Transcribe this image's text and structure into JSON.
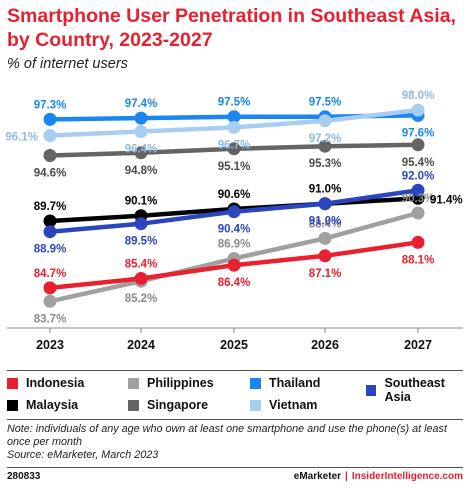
{
  "header": {
    "title_line1": "Smartphone User Penetration in Southeast Asia,",
    "title_line2": "by Country, 2023-2027",
    "subtitle": "% of internet users"
  },
  "chart_data": {
    "type": "line",
    "title": "Smartphone User Penetration in Southeast Asia, by Country, 2023-2027",
    "subtitle": "% of internet users",
    "x": [
      "2023",
      "2024",
      "2025",
      "2026",
      "2027"
    ],
    "ylim": [
      82,
      99.5
    ],
    "grid": false,
    "legend_position": "bottom",
    "series": [
      {
        "name": "Thailand",
        "color": "#1a86f0",
        "values": [
          97.3,
          97.4,
          97.5,
          97.5,
          97.6
        ]
      },
      {
        "name": "Vietnam",
        "color": "#a7cdf0",
        "values": [
          96.1,
          96.4,
          96.7,
          97.2,
          98.0
        ]
      },
      {
        "name": "Singapore",
        "color": "#646464",
        "values": [
          94.6,
          94.8,
          95.1,
          95.3,
          95.4
        ]
      },
      {
        "name": "Malaysia",
        "color": "#000000",
        "values": [
          89.7,
          90.1,
          90.6,
          91.0,
          91.4
        ]
      },
      {
        "name": "Southeast Asia",
        "color": "#2a45be",
        "values": [
          88.9,
          89.5,
          90.4,
          91.0,
          92.0
        ]
      },
      {
        "name": "Philippines",
        "color": "#a0a0a0",
        "values": [
          83.7,
          85.2,
          86.9,
          88.4,
          90.3
        ]
      },
      {
        "name": "Indonesia",
        "color": "#e8202f",
        "values": [
          84.7,
          85.4,
          86.4,
          87.1,
          88.1
        ]
      }
    ],
    "labels": {
      "Thailand": [
        "97.3%",
        "97.4%",
        "97.5%",
        "97.5%",
        "97.6%"
      ],
      "Vietnam": [
        "96.1%",
        "96.4%",
        "96.7%",
        "97.2%",
        "98.0%"
      ],
      "Singapore": [
        "94.6%",
        "94.8%",
        "95.1%",
        "95.3%",
        "95.4%"
      ],
      "Malaysia": [
        "89.7%",
        "90.1%",
        "90.6%",
        "91.0%",
        "91.4%"
      ],
      "Southeast Asia": [
        "88.9%",
        "89.5%",
        "90.4%",
        "91.0%",
        "92.0%"
      ],
      "Philippines": [
        "83.7%",
        "85.2%",
        "86.9%",
        "88.4%",
        "90.3%"
      ],
      "Indonesia": [
        "84.7%",
        "85.4%",
        "86.4%",
        "87.1%",
        "88.1%"
      ]
    }
  },
  "legend": {
    "items": [
      {
        "name": "Indonesia",
        "color": "#e8202f"
      },
      {
        "name": "Philippines",
        "color": "#a0a0a0"
      },
      {
        "name": "Thailand",
        "color": "#1a86f0"
      },
      {
        "name": "Southeast Asia",
        "color": "#2a45be"
      },
      {
        "name": "Malaysia",
        "color": "#000000"
      },
      {
        "name": "Singapore",
        "color": "#646464"
      },
      {
        "name": "Vietnam",
        "color": "#a7cdf0"
      }
    ]
  },
  "note": {
    "line1": "Note: individuals of any age who own at least one smartphone and use the phone(s) at least",
    "line2": "once per month",
    "source": "Source: eMarketer, March 2023"
  },
  "footer": {
    "chart_id": "280833",
    "brand1": "eMarketer",
    "separator": "|",
    "brand2": "InsiderIntelligence.com"
  }
}
